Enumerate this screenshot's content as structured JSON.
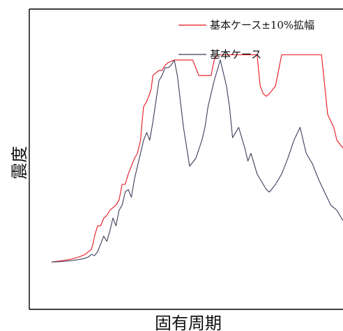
{
  "chart_data": {
    "type": "line",
    "xlabel": "固有周期",
    "ylabel": "震度",
    "xlim": [
      0,
      100
    ],
    "ylim": [
      0,
      100
    ],
    "grid": false,
    "ticks": false,
    "legend": "top-right",
    "series": [
      {
        "name": "基本ケース±10%拡幅",
        "color": "#e8141e",
        "x": [
          5,
          8,
          11,
          14,
          16,
          17,
          18,
          18.5,
          19,
          20,
          21,
          22,
          23,
          24,
          25,
          26,
          27,
          28,
          29,
          30,
          32,
          33,
          34,
          34.5,
          35,
          36,
          37,
          37.5,
          38,
          40,
          41,
          42,
          43,
          45,
          48,
          50,
          51,
          53,
          55,
          57,
          58,
          59,
          60,
          61,
          62,
          63,
          64,
          65,
          67,
          68,
          69,
          70,
          72,
          73,
          74,
          75,
          76,
          78,
          80,
          81,
          82,
          83,
          84,
          86,
          88,
          90,
          92,
          93,
          95,
          97,
          98,
          100
        ],
        "y": [
          8,
          8.5,
          9,
          10,
          11,
          12,
          13,
          15,
          18,
          22,
          22,
          25,
          26,
          28,
          29,
          30,
          32,
          38,
          38,
          42,
          48,
          50,
          55,
          62,
          68,
          70,
          73,
          75,
          80,
          82,
          82,
          84,
          85,
          86,
          86,
          86,
          86,
          80,
          80,
          80,
          86,
          88,
          88,
          88,
          88,
          88,
          88,
          88,
          88,
          88,
          88,
          88,
          88,
          76,
          73,
          72,
          73,
          76,
          88,
          88,
          88,
          88,
          88,
          88,
          88,
          88,
          88,
          88,
          65,
          60,
          55,
          52
        ]
      },
      {
        "name": "基本ケース",
        "color": "#3d3d5c",
        "x": [
          5,
          8,
          11,
          14,
          16,
          17,
          18,
          19,
          20,
          21,
          22,
          23,
          24,
          25,
          26,
          27,
          28,
          29,
          30,
          31,
          32,
          33,
          35,
          36,
          37,
          38,
          39,
          40,
          41,
          42,
          43,
          44,
          45,
          46,
          48,
          50,
          52,
          54,
          55,
          56,
          58,
          60,
          62,
          63,
          64,
          65,
          66,
          67,
          68,
          69,
          70,
          71,
          72,
          73,
          74,
          75,
          76,
          78,
          80,
          82,
          84,
          86,
          88,
          90,
          92,
          94,
          96,
          98,
          100
        ],
        "y": [
          8,
          8.2,
          8.5,
          9,
          9.5,
          10,
          11,
          10.5,
          12,
          15,
          18,
          16,
          20,
          25,
          22,
          28,
          30,
          35,
          36,
          33,
          40,
          45,
          55,
          58,
          55,
          62,
          70,
          78,
          80,
          83,
          83,
          84,
          86,
          80,
          60,
          45,
          48,
          55,
          60,
          68,
          78,
          86,
          76,
          68,
          56,
          58,
          60,
          56,
          52,
          47,
          50,
          46,
          42,
          40,
          38,
          36,
          35,
          38,
          42,
          48,
          55,
          60,
          50,
          46,
          40,
          35,
          30,
          28,
          24
        ]
      }
    ]
  }
}
